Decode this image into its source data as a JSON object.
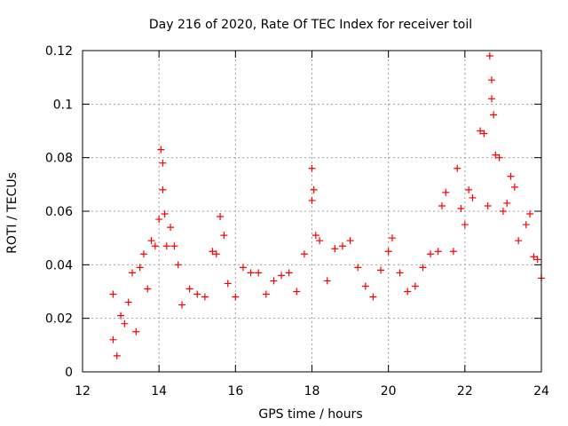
{
  "chart_data": {
    "type": "scatter",
    "title": "Day 216 of 2020, Rate Of TEC Index for receiver toil",
    "xlabel": "GPS time / hours",
    "ylabel": "ROTI / TECUs",
    "xlim": [
      12,
      24
    ],
    "ylim": [
      0,
      0.12
    ],
    "x_ticks": [
      12,
      14,
      16,
      18,
      20,
      22,
      24
    ],
    "x_tick_labels": [
      "12",
      "14",
      "16",
      "18",
      "20",
      "22",
      "24"
    ],
    "y_ticks": [
      0,
      0.02,
      0.04,
      0.06,
      0.08,
      0.1,
      0.12
    ],
    "y_tick_labels": [
      "0",
      "0.02",
      "0.04",
      "0.06",
      "0.08",
      "0.1",
      "0.12"
    ],
    "grid": true,
    "marker": "+",
    "color": "#ff0000",
    "series": [
      {
        "name": "ROTI",
        "points": [
          [
            12.8,
            0.029
          ],
          [
            12.8,
            0.012
          ],
          [
            12.9,
            0.006
          ],
          [
            13.0,
            0.021
          ],
          [
            13.1,
            0.018
          ],
          [
            13.2,
            0.026
          ],
          [
            13.3,
            0.037
          ],
          [
            13.4,
            0.015
          ],
          [
            13.5,
            0.039
          ],
          [
            13.6,
            0.044
          ],
          [
            13.7,
            0.031
          ],
          [
            13.8,
            0.049
          ],
          [
            13.9,
            0.047
          ],
          [
            14.0,
            0.057
          ],
          [
            14.05,
            0.083
          ],
          [
            14.1,
            0.078
          ],
          [
            14.1,
            0.068
          ],
          [
            14.15,
            0.059
          ],
          [
            14.2,
            0.047
          ],
          [
            14.3,
            0.054
          ],
          [
            14.4,
            0.047
          ],
          [
            14.5,
            0.04
          ],
          [
            14.6,
            0.025
          ],
          [
            14.8,
            0.031
          ],
          [
            15.0,
            0.029
          ],
          [
            15.2,
            0.028
          ],
          [
            15.4,
            0.045
          ],
          [
            15.5,
            0.044
          ],
          [
            15.6,
            0.058
          ],
          [
            15.7,
            0.051
          ],
          [
            15.8,
            0.033
          ],
          [
            16.0,
            0.028
          ],
          [
            16.2,
            0.039
          ],
          [
            16.4,
            0.037
          ],
          [
            16.6,
            0.037
          ],
          [
            16.8,
            0.029
          ],
          [
            17.0,
            0.034
          ],
          [
            17.2,
            0.036
          ],
          [
            17.4,
            0.037
          ],
          [
            17.6,
            0.03
          ],
          [
            17.8,
            0.044
          ],
          [
            18.0,
            0.064
          ],
          [
            18.0,
            0.076
          ],
          [
            18.05,
            0.068
          ],
          [
            18.1,
            0.051
          ],
          [
            18.2,
            0.049
          ],
          [
            18.4,
            0.034
          ],
          [
            18.6,
            0.046
          ],
          [
            18.8,
            0.047
          ],
          [
            19.0,
            0.049
          ],
          [
            19.2,
            0.039
          ],
          [
            19.4,
            0.032
          ],
          [
            19.6,
            0.028
          ],
          [
            19.8,
            0.038
          ],
          [
            20.0,
            0.045
          ],
          [
            20.1,
            0.05
          ],
          [
            20.3,
            0.037
          ],
          [
            20.5,
            0.03
          ],
          [
            20.7,
            0.032
          ],
          [
            20.9,
            0.039
          ],
          [
            21.1,
            0.044
          ],
          [
            21.3,
            0.045
          ],
          [
            21.4,
            0.062
          ],
          [
            21.5,
            0.067
          ],
          [
            21.7,
            0.045
          ],
          [
            21.8,
            0.076
          ],
          [
            21.9,
            0.061
          ],
          [
            22.0,
            0.055
          ],
          [
            22.1,
            0.068
          ],
          [
            22.2,
            0.065
          ],
          [
            22.4,
            0.09
          ],
          [
            22.5,
            0.089
          ],
          [
            22.6,
            0.062
          ],
          [
            22.65,
            0.118
          ],
          [
            22.7,
            0.109
          ],
          [
            22.7,
            0.102
          ],
          [
            22.75,
            0.096
          ],
          [
            22.8,
            0.081
          ],
          [
            22.9,
            0.08
          ],
          [
            23.0,
            0.06
          ],
          [
            23.1,
            0.063
          ],
          [
            23.2,
            0.073
          ],
          [
            23.3,
            0.069
          ],
          [
            23.4,
            0.049
          ],
          [
            23.6,
            0.055
          ],
          [
            23.7,
            0.059
          ],
          [
            23.8,
            0.043
          ],
          [
            23.9,
            0.042
          ],
          [
            24.0,
            0.035
          ]
        ]
      }
    ]
  }
}
